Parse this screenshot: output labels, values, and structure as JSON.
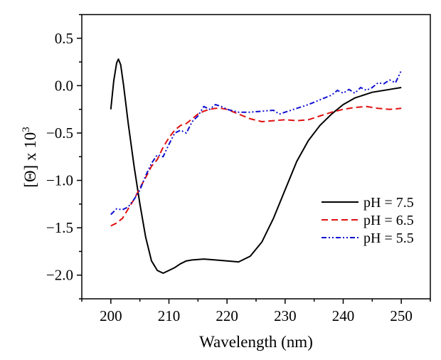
{
  "chart_data": {
    "type": "line",
    "title": "",
    "xlabel": "Wavelength (nm)",
    "ylabel_main": "[Θ] x 10",
    "ylabel_sup": "3",
    "xlim": [
      195,
      255
    ],
    "ylim": [
      -2.25,
      0.75
    ],
    "xticks": [
      200,
      210,
      220,
      230,
      240,
      250
    ],
    "xtick_labels": [
      "200",
      "210",
      "220",
      "230",
      "240",
      "250"
    ],
    "yticks": [
      0.5,
      0.0,
      -0.5,
      -1.0,
      -1.5,
      -2.0
    ],
    "ytick_labels": [
      "0.5",
      "0.0",
      "−0.5",
      "−1.0",
      "−1.5",
      "−2.0"
    ],
    "grid": false,
    "legend_position": "lower-right",
    "series": [
      {
        "name": "pH = 7.5",
        "color": "#000000",
        "dash": "solid",
        "x": [
          200,
          200.5,
          201,
          201.3,
          201.7,
          202.2,
          203,
          204,
          205,
          206,
          207,
          208,
          209,
          210,
          211,
          212,
          213,
          214,
          216,
          218,
          220,
          222,
          224,
          226,
          228,
          230,
          232,
          234,
          236,
          238,
          240,
          242,
          245,
          248,
          250
        ],
        "y": [
          -0.25,
          0.05,
          0.24,
          0.28,
          0.22,
          0.0,
          -0.4,
          -0.85,
          -1.25,
          -1.6,
          -1.85,
          -1.95,
          -1.98,
          -1.95,
          -1.92,
          -1.88,
          -1.85,
          -1.84,
          -1.83,
          -1.84,
          -1.85,
          -1.86,
          -1.8,
          -1.65,
          -1.4,
          -1.1,
          -0.8,
          -0.58,
          -0.42,
          -0.3,
          -0.2,
          -0.13,
          -0.07,
          -0.04,
          -0.02
        ]
      },
      {
        "name": "pH = 6.5",
        "color": "#e01010",
        "dash": "dashed",
        "x": [
          200,
          201,
          202,
          203,
          204,
          205,
          206,
          207,
          208,
          209,
          210,
          211,
          212,
          213,
          214,
          215,
          216,
          217,
          218,
          219,
          220,
          222,
          224,
          226,
          228,
          230,
          232,
          234,
          236,
          238,
          240,
          242,
          244,
          246,
          248,
          250
        ],
        "y": [
          -1.48,
          -1.45,
          -1.4,
          -1.3,
          -1.2,
          -1.08,
          -0.97,
          -0.85,
          -0.78,
          -0.65,
          -0.55,
          -0.47,
          -0.42,
          -0.4,
          -0.35,
          -0.3,
          -0.27,
          -0.25,
          -0.24,
          -0.24,
          -0.25,
          -0.3,
          -0.35,
          -0.38,
          -0.37,
          -0.36,
          -0.37,
          -0.36,
          -0.32,
          -0.28,
          -0.25,
          -0.23,
          -0.22,
          -0.24,
          -0.25,
          -0.24
        ]
      },
      {
        "name": "pH = 5.5",
        "color": "#1010d0",
        "dash": "dash-dot-dot",
        "x": [
          200,
          201,
          202,
          203,
          204,
          205,
          206,
          207,
          208,
          209,
          210,
          211,
          212,
          213,
          214,
          215,
          216,
          217,
          218,
          219,
          220,
          222,
          224,
          226,
          228,
          229,
          230,
          232,
          234,
          236,
          238,
          239,
          240,
          241,
          242,
          243,
          244,
          245,
          246,
          247,
          248,
          249,
          250
        ],
        "y": [
          -1.36,
          -1.3,
          -1.31,
          -1.28,
          -1.2,
          -1.1,
          -0.95,
          -0.82,
          -0.73,
          -0.75,
          -0.62,
          -0.5,
          -0.47,
          -0.5,
          -0.38,
          -0.32,
          -0.22,
          -0.25,
          -0.2,
          -0.22,
          -0.25,
          -0.28,
          -0.28,
          -0.27,
          -0.26,
          -0.3,
          -0.28,
          -0.24,
          -0.2,
          -0.15,
          -0.1,
          -0.05,
          -0.08,
          -0.04,
          -0.08,
          -0.02,
          -0.05,
          -0.02,
          0.03,
          0.02,
          0.06,
          0.03,
          0.16
        ]
      }
    ]
  }
}
